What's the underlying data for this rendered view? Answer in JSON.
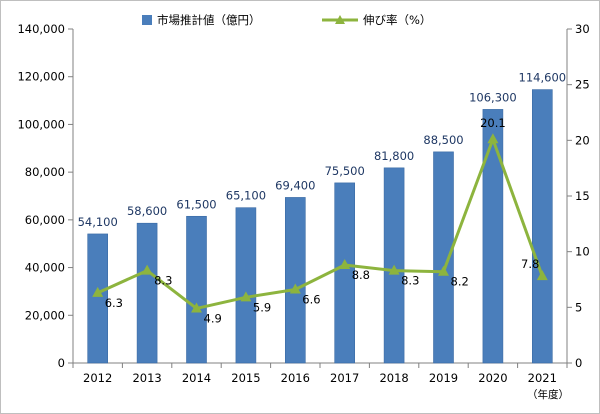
{
  "colors": {
    "bar": "#4a7ebb",
    "bar_edge": "#3a6aa4",
    "line": "#8db43e",
    "axis": "#808080",
    "bar_label": "#1f3864"
  },
  "chart_data": {
    "type": "bar",
    "categories": [
      "2012",
      "2013",
      "2014",
      "2015",
      "2016",
      "2017",
      "2018",
      "2019",
      "2020",
      "2021"
    ],
    "x_unit_label": "（年度）",
    "series": [
      {
        "name": "市場推計値（億円）",
        "type": "bar",
        "axis": "left",
        "values": [
          54100,
          58600,
          61500,
          65100,
          69400,
          75500,
          81800,
          88500,
          106300,
          114600
        ],
        "labels": [
          "54,100",
          "58,600",
          "61,500",
          "65,100",
          "69,400",
          "75,500",
          "81,800",
          "88,500",
          "106,300",
          "114,600"
        ]
      },
      {
        "name": "伸び率（%）",
        "type": "line",
        "axis": "right",
        "values": [
          6.3,
          8.3,
          4.9,
          5.9,
          6.6,
          8.8,
          8.3,
          8.2,
          20.1,
          7.8
        ],
        "labels": [
          "6.3",
          "8.3",
          "4.9",
          "5.9",
          "6.6",
          "8.8",
          "8.3",
          "8.2",
          "20.1",
          "7.8"
        ]
      }
    ],
    "y_left": {
      "ylim": [
        0,
        140000
      ],
      "ticks": [
        0,
        20000,
        40000,
        60000,
        80000,
        100000,
        120000,
        140000
      ],
      "tick_labels": [
        "0",
        "20,000",
        "40,000",
        "60,000",
        "80,000",
        "100,000",
        "120,000",
        "140,000"
      ]
    },
    "y_right": {
      "ylim": [
        0,
        30
      ],
      "ticks": [
        0,
        5,
        10,
        15,
        20,
        25,
        30
      ],
      "tick_labels": [
        "0",
        "5",
        "10",
        "15",
        "20",
        "25",
        "30"
      ]
    },
    "grid": false,
    "legend_position": "top-center"
  }
}
